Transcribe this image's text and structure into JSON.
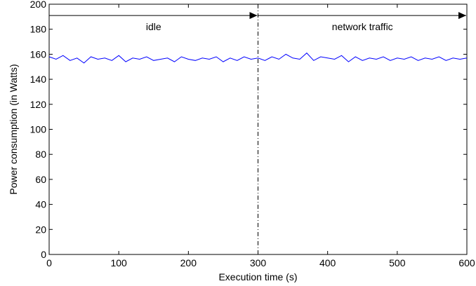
{
  "chart_data": {
    "type": "line",
    "title": "",
    "xlabel": "Execution time (s)",
    "ylabel": "Power consumption (in Watts)",
    "xlim": [
      0,
      600
    ],
    "ylim": [
      0,
      200
    ],
    "xticks": [
      0,
      100,
      200,
      300,
      400,
      500,
      600
    ],
    "yticks": [
      0,
      20,
      40,
      60,
      80,
      100,
      120,
      140,
      160,
      180,
      200
    ],
    "grid": false,
    "legend": "none",
    "colors": {
      "line": "#0000ff",
      "axis": "#000000"
    },
    "series": [
      {
        "x": [
          0,
          10,
          20,
          30,
          40,
          50,
          60,
          70,
          80,
          90,
          100,
          110,
          120,
          130,
          140,
          150,
          160,
          170,
          180,
          190,
          200,
          210,
          220,
          230,
          240,
          250,
          260,
          270,
          280,
          290,
          300,
          310,
          320,
          330,
          340,
          350,
          360,
          370,
          380,
          390,
          400,
          410,
          420,
          430,
          440,
          450,
          460,
          470,
          480,
          490,
          500,
          510,
          520,
          530,
          540,
          550,
          560,
          570,
          580,
          590,
          600
        ],
        "y": [
          158,
          156,
          159,
          155,
          157,
          153,
          158,
          156,
          157,
          155,
          159,
          154,
          157,
          156,
          158,
          155,
          156,
          157,
          154,
          158,
          156,
          155,
          157,
          156,
          158,
          154,
          157,
          155,
          158,
          156,
          157,
          155,
          158,
          156,
          160,
          157,
          156,
          161,
          155,
          158,
          157,
          156,
          159,
          154,
          158,
          155,
          157,
          156,
          158,
          155,
          157,
          156,
          158,
          155,
          157,
          156,
          158,
          155,
          157,
          156,
          157
        ]
      }
    ],
    "divider_x": 300,
    "annotations": [
      {
        "text": "idle",
        "x_from": 0,
        "x_to": 300,
        "y": 191
      },
      {
        "text": "network traffic",
        "x_from": 300,
        "x_to": 600,
        "y": 191
      }
    ]
  }
}
